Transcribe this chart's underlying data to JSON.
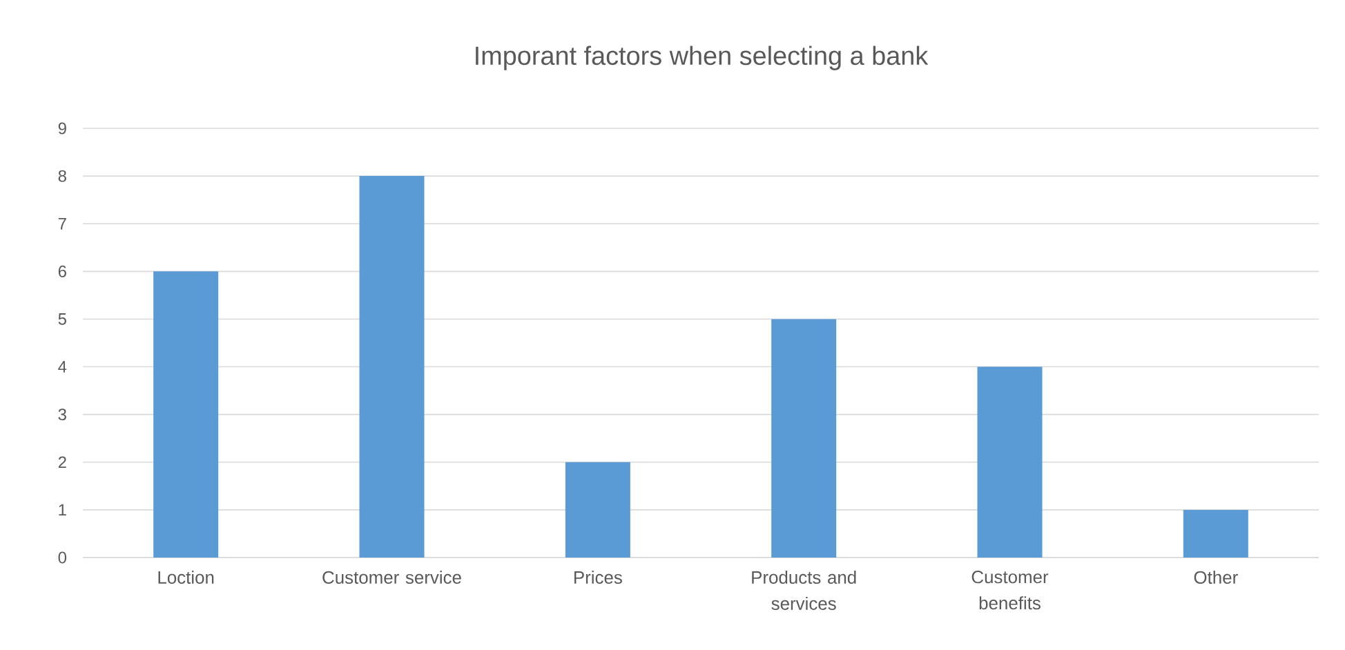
{
  "chart_data": {
    "type": "bar",
    "title": "Imporant factors when selecting a bank",
    "categories": [
      "Loction",
      "Customer service",
      "Prices",
      "Products and services",
      "Customer benefits",
      "Other"
    ],
    "values": [
      6,
      8,
      2,
      5,
      4,
      1
    ],
    "color": "#5b9bd5",
    "ylim": [
      0,
      9
    ],
    "yticks": [
      0,
      1,
      2,
      3,
      4,
      5,
      6,
      7,
      8,
      9
    ],
    "grid": "y"
  }
}
